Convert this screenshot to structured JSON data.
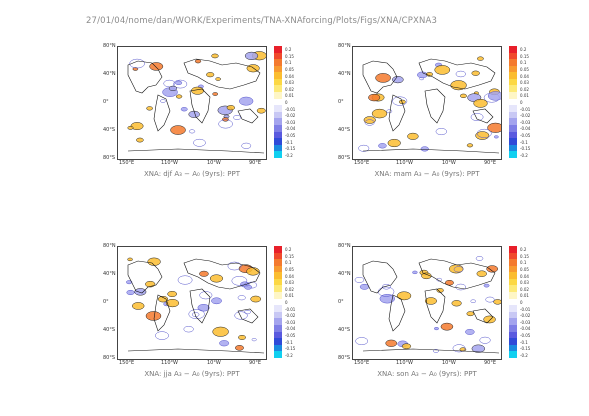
{
  "header": "27/01/04/nome/dan/WORK/Experiments/TNA-XNAforcing/Plots/Figs/XNA/CPXNA3",
  "lat_labels": [
    "80°N",
    "40°N",
    "0°",
    "40°S",
    "80°S"
  ],
  "lon_labels": [
    "150°E",
    "110°W",
    "10°W",
    "90°E"
  ],
  "panels": [
    {
      "title": "XNA: djf A₃ − A₀ (9yrs): PPT"
    },
    {
      "title": "XNA: mam A₃ − A₀ (9yrs): PPT"
    },
    {
      "title": "XNA: jja A₃ − A₀ (9yrs): PPT"
    },
    {
      "title": "XNA: son A₃ − A₀ (9yrs): PPT"
    }
  ],
  "colorbar": {
    "labels": [
      "0.2",
      "0.15",
      "0.1",
      "0.05",
      "0.04",
      "0.03",
      "0.02",
      "0.01",
      "0",
      "-0.01",
      "-0.02",
      "-0.03",
      "-0.04",
      "-0.05",
      "-0.1",
      "-0.15",
      "-0.2"
    ],
    "colors": [
      "#e8202a",
      "#f04a2c",
      "#f47a2e",
      "#f89a30",
      "#fbbd30",
      "#fcd844",
      "#fdea78",
      "#fef6c6",
      "#ffffff",
      "#e6e6fb",
      "#c8c8f4",
      "#a4a4ee",
      "#7f7fe6",
      "#5a5adf",
      "#2f4ad8",
      "#1a8ae0",
      "#10d0f0"
    ]
  }
}
